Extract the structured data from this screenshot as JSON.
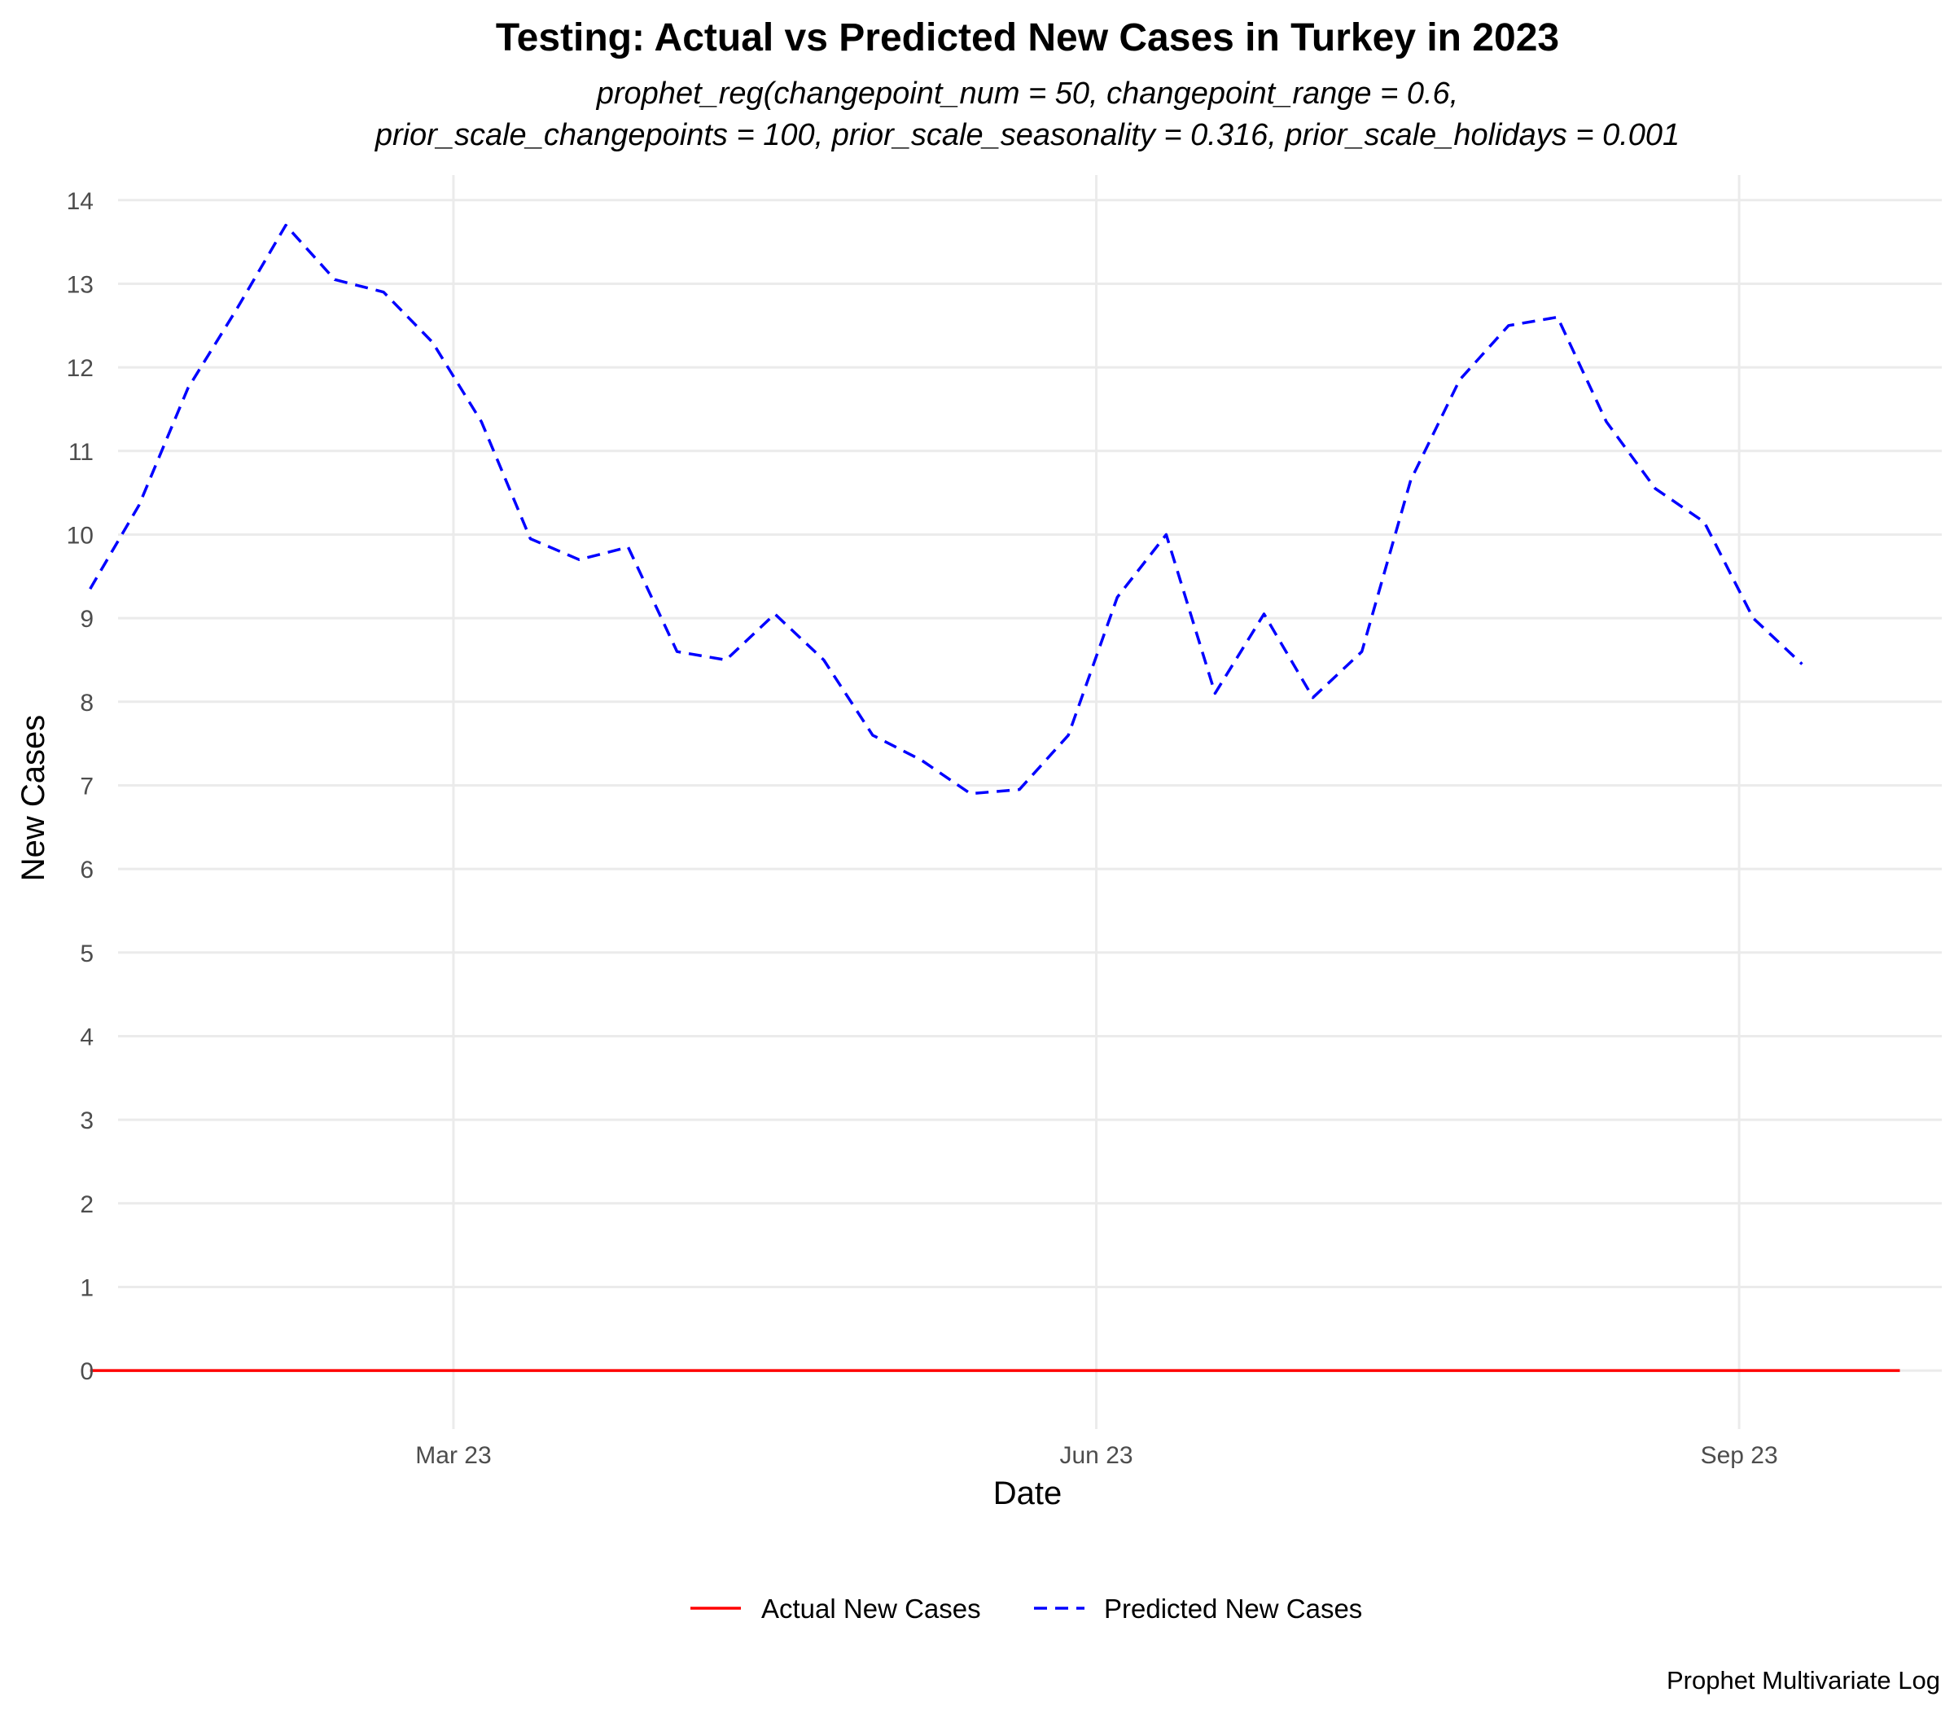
{
  "chart_data": {
    "type": "line",
    "title": "Testing: Actual vs Predicted New Cases in Turkey in 2023",
    "subtitle_lines": [
      "prophet_reg(changepoint_num = 50, changepoint_range = 0.6,",
      "prior_scale_changepoints = 100, prior_scale_seasonality = 0.316, prior_scale_holidays = 0.001"
    ],
    "xlabel": "Date",
    "ylabel": "New Cases",
    "caption": "Prophet Multivariate Log",
    "xlim": [
      "2023-01-12",
      "2023-09-30"
    ],
    "ylim": [
      -0.7,
      14.3
    ],
    "x_ticks": [
      {
        "date": "2023-03-01",
        "label": "Mar 23"
      },
      {
        "date": "2023-06-01",
        "label": "Jun 23"
      },
      {
        "date": "2023-09-01",
        "label": "Sep 23"
      }
    ],
    "y_ticks": [
      0,
      1,
      2,
      3,
      4,
      5,
      6,
      7,
      8,
      9,
      10,
      11,
      12,
      13,
      14
    ],
    "grid": true,
    "legend_position": "bottom",
    "series": [
      {
        "name": "Actual New Cases",
        "color": "#ff0000",
        "dash": "solid",
        "points": [
          [
            "2023-01-08",
            0
          ],
          [
            "2023-09-24",
            0
          ]
        ]
      },
      {
        "name": "Predicted New Cases",
        "color": "#0000ff",
        "dash": "dashed",
        "points": [
          [
            "2023-01-08",
            9.35
          ],
          [
            "2023-01-15",
            10.35
          ],
          [
            "2023-01-22",
            11.75
          ],
          [
            "2023-01-29",
            12.7
          ],
          [
            "2023-02-05",
            13.7
          ],
          [
            "2023-02-12",
            13.05
          ],
          [
            "2023-02-19",
            12.9
          ],
          [
            "2023-02-26",
            12.3
          ],
          [
            "2023-03-05",
            11.35
          ],
          [
            "2023-03-12",
            9.95
          ],
          [
            "2023-03-19",
            9.7
          ],
          [
            "2023-03-26",
            9.85
          ],
          [
            "2023-04-02",
            8.6
          ],
          [
            "2023-04-09",
            8.5
          ],
          [
            "2023-04-16",
            9.05
          ],
          [
            "2023-04-23",
            8.5
          ],
          [
            "2023-04-30",
            7.6
          ],
          [
            "2023-05-07",
            7.3
          ],
          [
            "2023-05-14",
            6.9
          ],
          [
            "2023-05-21",
            6.95
          ],
          [
            "2023-05-28",
            7.6
          ],
          [
            "2023-06-04",
            9.25
          ],
          [
            "2023-06-11",
            10.0
          ],
          [
            "2023-06-18",
            8.1
          ],
          [
            "2023-06-25",
            9.05
          ],
          [
            "2023-07-02",
            8.05
          ],
          [
            "2023-07-09",
            8.6
          ],
          [
            "2023-07-16",
            10.65
          ],
          [
            "2023-07-23",
            11.85
          ],
          [
            "2023-07-30",
            12.5
          ],
          [
            "2023-08-06",
            12.6
          ],
          [
            "2023-08-13",
            11.35
          ],
          [
            "2023-08-20",
            10.55
          ],
          [
            "2023-08-27",
            10.15
          ],
          [
            "2023-09-03",
            9.0
          ],
          [
            "2023-09-10",
            8.45
          ]
        ]
      }
    ]
  }
}
